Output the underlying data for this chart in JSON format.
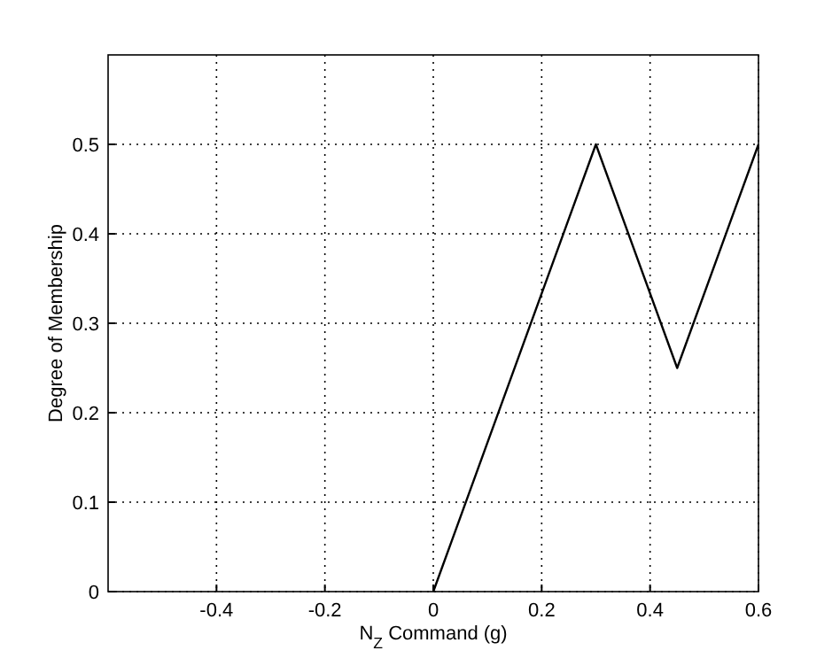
{
  "chart_data": {
    "type": "line",
    "xlabel": "N$_{Z}$ Command (g)",
    "ylabel": "Degree of Membership",
    "x": [
      0,
      0.3,
      0.45,
      0.6
    ],
    "series": [
      {
        "color": "#000000",
        "values": [
          0,
          0.5,
          0.25,
          0.5
        ]
      }
    ],
    "xlim": [
      -0.6,
      0.6
    ],
    "xticks": [
      -0.4,
      -0.2,
      0,
      0.2,
      0.4,
      0.6
    ],
    "ylim": [
      0,
      0.6
    ],
    "yticks": [
      0,
      0.1,
      0.2,
      0.3,
      0.4,
      0.5
    ],
    "grid": true,
    "line_style": "solid",
    "marker": "none"
  }
}
